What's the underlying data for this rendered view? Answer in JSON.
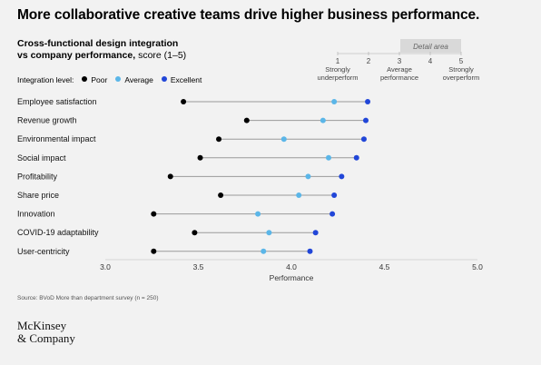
{
  "headline": "More collaborative creative teams drive higher business performance.",
  "subtitle": {
    "bold": "Cross-functional design integration",
    "bold2": "vs company performance,",
    "normal": "score (1–5)"
  },
  "legend": {
    "label": "Integration level:",
    "items": [
      {
        "name": "Poor",
        "color": "#000000"
      },
      {
        "name": "Average",
        "color": "#5bb6e8"
      },
      {
        "name": "Excellent",
        "color": "#2146d8"
      }
    ]
  },
  "detail_scale": {
    "title": "Detail area",
    "ticks": [
      "1",
      "2",
      "3",
      "4",
      "5"
    ],
    "labels": [
      "Strongly\nunderperform",
      "Average\nperformance",
      "Strongly\noverperform"
    ]
  },
  "chart_data": {
    "type": "scatter",
    "subtype": "dumbbell",
    "xlabel": "Performance",
    "xlim": [
      3.0,
      5.0
    ],
    "xticks": [
      "3.0",
      "3.5",
      "4.0",
      "4.5",
      "5.0"
    ],
    "xtick_values": [
      3.0,
      3.5,
      4.0,
      4.5,
      5.0
    ],
    "categories": [
      "Employee satisfaction",
      "Revenue growth",
      "Environmental impact",
      "Social impact",
      "Profitability",
      "Share price",
      "Innovation",
      "COVID-19 adaptability",
      "User-centricity"
    ],
    "series": [
      {
        "name": "Poor",
        "color": "#000000",
        "values": [
          3.42,
          3.76,
          3.61,
          3.51,
          3.35,
          3.62,
          3.26,
          3.48,
          3.26
        ]
      },
      {
        "name": "Average",
        "color": "#5bb6e8",
        "values": [
          4.23,
          4.17,
          3.96,
          4.2,
          4.09,
          4.04,
          3.82,
          3.88,
          3.85
        ]
      },
      {
        "name": "Excellent",
        "color": "#2146d8",
        "values": [
          4.41,
          4.4,
          4.39,
          4.35,
          4.27,
          4.23,
          4.22,
          4.13,
          4.1
        ]
      }
    ],
    "grid": false,
    "legend_position": "top-left"
  },
  "source": "Source: BVoD More than department survey (n = 250)",
  "logo": {
    "line1": "McKinsey",
    "line2": "& Company"
  }
}
